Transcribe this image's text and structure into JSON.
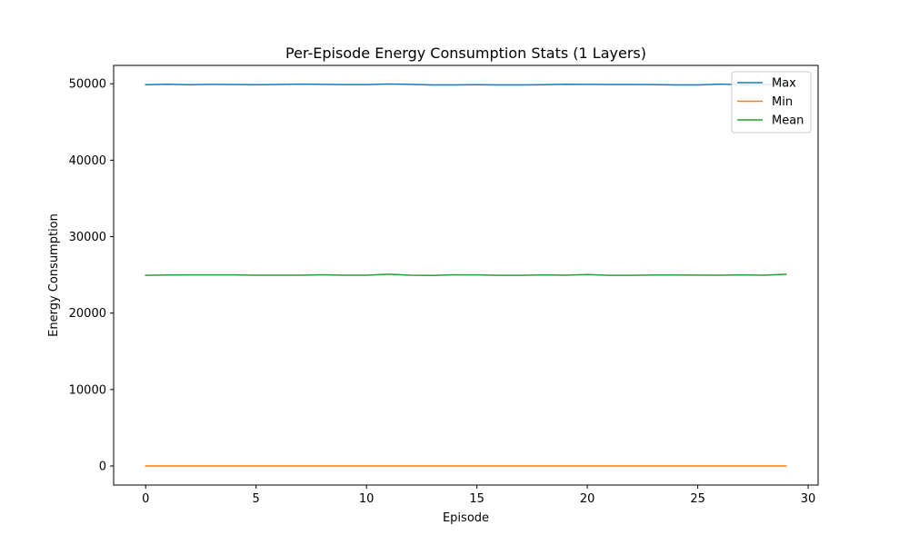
{
  "chart_data": {
    "type": "line",
    "title": "Per-Episode Energy Consumption Stats (1 Layers)",
    "xlabel": "Episode",
    "ylabel": "Energy Consumption",
    "xlim": [
      -1.45,
      30.45
    ],
    "ylim": [
      -2495,
      52400
    ],
    "x_ticks": [
      0,
      5,
      10,
      15,
      20,
      25,
      30
    ],
    "y_ticks": [
      0,
      10000,
      20000,
      30000,
      40000,
      50000
    ],
    "grid": false,
    "legend_position": "top-right",
    "x": [
      0,
      1,
      2,
      3,
      4,
      5,
      6,
      7,
      8,
      9,
      10,
      11,
      12,
      13,
      14,
      15,
      16,
      17,
      18,
      19,
      20,
      21,
      22,
      23,
      24,
      25,
      26,
      27,
      28,
      29
    ],
    "series": [
      {
        "name": "Max",
        "color": "#1f77b4",
        "values": [
          49870,
          49940,
          49880,
          49920,
          49900,
          49870,
          49900,
          49950,
          49920,
          49890,
          49890,
          49960,
          49920,
          49850,
          49850,
          49880,
          49850,
          49850,
          49870,
          49930,
          49920,
          49910,
          49900,
          49890,
          49850,
          49850,
          49950,
          49870,
          49890,
          49940
        ]
      },
      {
        "name": "Min",
        "color": "#ff7f0e",
        "values": [
          0,
          0,
          0,
          0,
          0,
          0,
          0,
          0,
          0,
          0,
          0,
          0,
          0,
          0,
          0,
          0,
          0,
          0,
          0,
          0,
          0,
          0,
          0,
          0,
          0,
          0,
          0,
          0,
          0,
          0
        ]
      },
      {
        "name": "Mean",
        "color": "#2ca02c",
        "values": [
          24940,
          24980,
          24990,
          24990,
          25000,
          24960,
          24950,
          24960,
          25010,
          24960,
          24960,
          25080,
          24960,
          24930,
          25010,
          24990,
          24940,
          24940,
          24990,
          24960,
          25040,
          24940,
          24940,
          24980,
          24980,
          24970,
          24960,
          25000,
          24960,
          25080
        ]
      }
    ]
  }
}
